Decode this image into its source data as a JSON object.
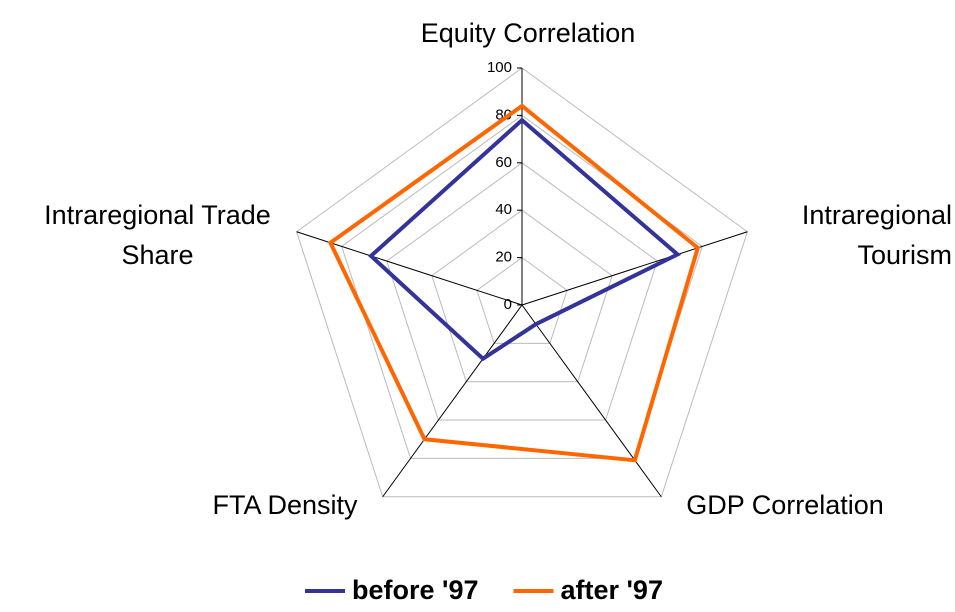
{
  "chart_data": {
    "type": "radar",
    "categories": [
      "Equity Correlation",
      "Intraregional Tourism",
      "GDP Correlation",
      "FTA Density",
      "Intraregional Trade Share"
    ],
    "series": [
      {
        "name": "before '97",
        "color": "#333399",
        "values": [
          78,
          69,
          10,
          28,
          67
        ]
      },
      {
        "name": "after '97",
        "color": "#ff6600",
        "values": [
          84,
          78,
          81,
          70,
          85
        ]
      }
    ],
    "ylim": [
      0,
      100
    ],
    "yticks": [
      0,
      20,
      40,
      60,
      80,
      100
    ],
    "grid": true,
    "legend": "bottom"
  }
}
